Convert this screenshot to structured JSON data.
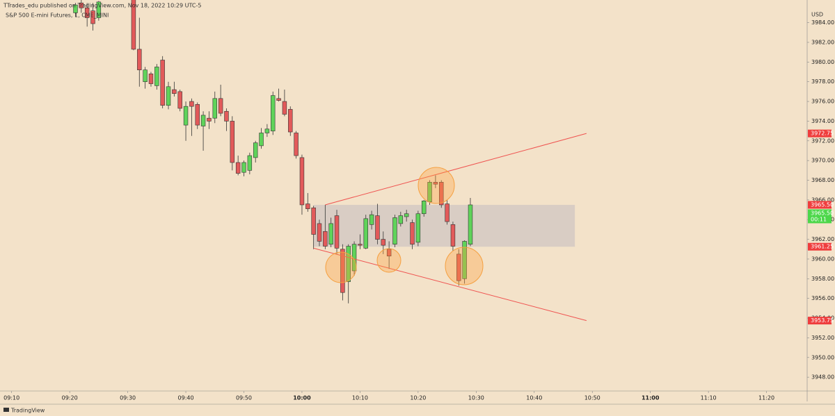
{
  "header": {
    "publisher": "TTrades_edu published on TradingView.com, Nov 18, 2022 10:29 UTC-5",
    "symbol": "S&P 500 E-mini Futures, 1, CME_MINI",
    "currency": "USD"
  },
  "footer": {
    "brand": "TradingView"
  },
  "chart_data": {
    "type": "candlestick",
    "up_color": "#5fd35a",
    "down_color": "#e25a5a",
    "x": [
      "09:21",
      "09:22",
      "09:23",
      "09:24",
      "09:25",
      "09:26",
      "09:27",
      "09:28",
      "09:29",
      "09:30",
      "09:31",
      "09:32",
      "09:33",
      "09:34",
      "09:35",
      "09:36",
      "09:37",
      "09:38",
      "09:39",
      "09:40",
      "09:41",
      "09:42",
      "09:43",
      "09:44",
      "09:45",
      "09:46",
      "09:47",
      "09:48",
      "09:49",
      "09:50",
      "09:51",
      "09:52",
      "09:53",
      "09:54",
      "09:55",
      "09:56",
      "09:57",
      "09:58",
      "09:59",
      "10:00",
      "10:01",
      "10:02",
      "10:03",
      "10:04",
      "10:05",
      "10:06",
      "10:07",
      "10:08",
      "10:09",
      "10:10",
      "10:11",
      "10:12",
      "10:13",
      "10:14",
      "10:15",
      "10:16",
      "10:17",
      "10:18",
      "10:19",
      "10:20",
      "10:21",
      "10:22",
      "10:23",
      "10:24",
      "10:25",
      "10:26",
      "10:27",
      "10:28",
      "10:29"
    ],
    "open": [
      3985.0,
      3986.0,
      3985.5,
      3985.2,
      3984.5,
      null,
      null,
      null,
      null,
      null,
      3987.5,
      3981.3,
      3978.0,
      3978.8,
      3977.6,
      3980.2,
      3975.6,
      3977.2,
      3977.0,
      3973.6,
      3976.0,
      3975.7,
      3973.5,
      3974.3,
      3974.3,
      3976.3,
      3975.0,
      3974.0,
      3969.8,
      3968.8,
      3969.0,
      3970.3,
      3971.5,
      3972.8,
      3973.0,
      3976.3,
      3976.0,
      3975.2,
      3972.8,
      3970.3,
      3965.6,
      3965.2,
      3963.6,
      3962.8,
      3961.5,
      3964.4,
      3961.0,
      3957.7,
      3958.8,
      3961.5,
      3961.1,
      3963.5,
      3964.4,
      3962.0,
      3961.0,
      3961.5,
      3963.6,
      3964.3,
      3963.7,
      3961.7,
      3964.6,
      3965.8,
      3967.8,
      3967.8,
      3965.6,
      3963.5,
      3960.5,
      3958.0,
      3961.5
    ],
    "high": [
      3986.0,
      3986.3,
      3986.0,
      3986.0,
      3986.2,
      null,
      null,
      null,
      null,
      null,
      3988.0,
      3984.5,
      3979.5,
      3979.0,
      3979.8,
      3980.6,
      3978.0,
      3978.0,
      3977.2,
      3976.0,
      3976.3,
      3975.9,
      3975.0,
      3975.0,
      3977.0,
      3977.7,
      3975.3,
      3974.5,
      3970.5,
      3970.0,
      3970.8,
      3972.0,
      3973.3,
      3973.7,
      3977.0,
      3977.3,
      3977.2,
      3975.5,
      3973.0,
      3970.6,
      3966.7,
      3965.4,
      3964.0,
      3965.5,
      3964.2,
      3965.0,
      3961.5,
      3961.5,
      3961.8,
      3962.5,
      3964.5,
      3964.9,
      3965.6,
      3962.8,
      3961.8,
      3964.5,
      3964.8,
      3965.0,
      3964.0,
      3964.9,
      3966.0,
      3968.0,
      3968.5,
      3968.0,
      3966.0,
      3963.8,
      3961.0,
      3961.9,
      3966.2
    ],
    "low": [
      3984.6,
      3985.0,
      3983.6,
      3983.2,
      3984.2,
      null,
      null,
      null,
      null,
      null,
      3981.2,
      3977.5,
      3977.3,
      3977.5,
      3977.2,
      3975.3,
      3975.2,
      3976.5,
      3975.0,
      3972.0,
      3972.5,
      3973.2,
      3971.0,
      3973.2,
      3973.8,
      3974.5,
      3973.0,
      3969.0,
      3968.5,
      3968.4,
      3968.6,
      3969.8,
      3971.2,
      3972.4,
      3972.6,
      3976.0,
      3974.5,
      3972.5,
      3970.2,
      3964.5,
      3964.8,
      3961.0,
      3961.3,
      3961.0,
      3961.2,
      3960.5,
      3955.8,
      3955.5,
      3958.3,
      3961.0,
      3961.0,
      3963.0,
      3961.5,
      3960.5,
      3959.0,
      3961.2,
      3963.3,
      3963.8,
      3961.0,
      3961.3,
      3964.3,
      3965.5,
      3967.2,
      3965.2,
      3963.5,
      3960.8,
      3957.3,
      3957.5,
      3961.3
    ],
    "close": [
      3985.8,
      3985.5,
      3984.5,
      3983.9,
      3986.1,
      null,
      null,
      null,
      null,
      null,
      3981.3,
      3979.2,
      3979.2,
      3977.8,
      3979.5,
      3975.6,
      3977.5,
      3976.8,
      3975.3,
      3975.5,
      3975.5,
      3973.6,
      3974.6,
      3974.0,
      3976.3,
      3974.8,
      3974.0,
      3969.8,
      3968.7,
      3969.8,
      3970.5,
      3971.8,
      3972.8,
      3973.2,
      3976.6,
      3976.1,
      3974.7,
      3972.9,
      3970.5,
      3965.5,
      3965.1,
      3962.5,
      3961.8,
      3961.3,
      3963.6,
      3961.1,
      3956.6,
      3961.3,
      3961.5,
      3961.4,
      3964.1,
      3964.5,
      3962.0,
      3961.4,
      3960.3,
      3964.2,
      3964.4,
      3964.6,
      3961.5,
      3964.6,
      3965.9,
      3967.8,
      3967.6,
      3965.5,
      3963.8,
      3961.3,
      3957.8,
      3961.8,
      3965.5
    ],
    "xlim": [
      "09:08",
      "11:27"
    ],
    "xticks": [
      "09:10",
      "09:20",
      "09:30",
      "09:40",
      "09:50",
      "10:00",
      "10:10",
      "10:20",
      "10:30",
      "10:40",
      "10:50",
      "11:00",
      "11:10",
      "11:20"
    ],
    "ylim": [
      3946.6,
      3986.3
    ],
    "yticks": [
      {
        "value": 3948,
        "label": "3948.00"
      },
      {
        "value": 3950,
        "label": "3950.00"
      },
      {
        "value": 3952,
        "label": "3952.00"
      },
      {
        "value": 3954,
        "label": "3954.00"
      },
      {
        "value": 3956,
        "label": "3956.00"
      },
      {
        "value": 3958,
        "label": "3958.00"
      },
      {
        "value": 3960,
        "label": "3960.00"
      },
      {
        "value": 3962,
        "label": "3962.00"
      },
      {
        "value": 3964,
        "label": "3964.00"
      },
      {
        "value": 3966,
        "label": "3966.00"
      },
      {
        "value": 3968,
        "label": "3968.00"
      },
      {
        "value": 3970,
        "label": "3970.00"
      },
      {
        "value": 3972,
        "label": "3972.00"
      },
      {
        "value": 3974,
        "label": "3974.00"
      },
      {
        "value": 3976,
        "label": "3976.00"
      },
      {
        "value": 3978,
        "label": "3978.00"
      },
      {
        "value": 3980,
        "label": "3980.00"
      },
      {
        "value": 3982,
        "label": "3982.00"
      },
      {
        "value": 3984,
        "label": "3984.00"
      }
    ],
    "box": {
      "x": [
        "10:02",
        "10:47"
      ],
      "y": [
        3961.25,
        3965.5
      ],
      "color": "#d6cbc3"
    },
    "trendlines": [
      {
        "x": [
          "10:04",
          "10:49"
        ],
        "y": [
          3965.5,
          3972.75
        ],
        "color": "#ef5350"
      },
      {
        "x": [
          "10:02",
          "10:49"
        ],
        "y": [
          3961.1,
          3953.75
        ],
        "color": "#ef5350"
      }
    ],
    "price_labels": [
      {
        "value": 3972.75,
        "label": "3972.75",
        "color": "#ef3d3d"
      },
      {
        "value": 3965.5,
        "label": "3965.50",
        "color": "#ef3d3d"
      },
      {
        "value": 3965.5,
        "label": "3965.50",
        "color": "#4cd74a",
        "countdown": "00:11"
      },
      {
        "value": 3961.25,
        "label": "3961.25",
        "color": "#ef3d3d"
      },
      {
        "value": 3953.75,
        "label": "3953.75",
        "color": "#ef3d3d"
      }
    ]
  }
}
